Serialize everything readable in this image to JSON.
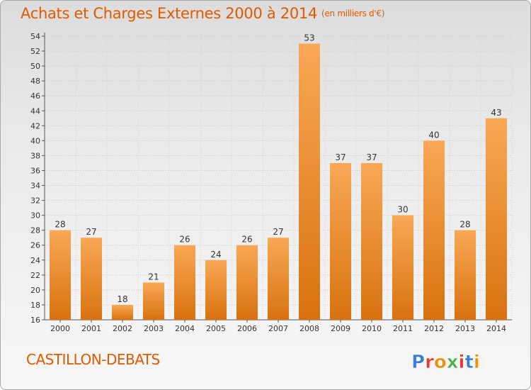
{
  "header": {
    "title": "Achats et Charges Externes 2000 à 2014",
    "unit": "(en milliers d'€)"
  },
  "footer": {
    "commune": "CASTILLON-DEBATS",
    "logo": "Proxiti",
    "logo_colors": [
      "#3b7fd4",
      "#e8392b",
      "#f28c00",
      "#4caf50",
      "#e8392b",
      "#3b7fd4",
      "#f28c00"
    ]
  },
  "colors": {
    "bar_light": "#f9a855",
    "bar_dark": "#d9720f",
    "accent": "#e05a00"
  },
  "chart_data": {
    "type": "bar",
    "title": "Achats et Charges Externes 2000 à 2014",
    "subtitle": "(en milliers d'€)",
    "categories": [
      "2000",
      "2001",
      "2002",
      "2003",
      "2004",
      "2005",
      "2006",
      "2007",
      "2008",
      "2009",
      "2010",
      "2011",
      "2012",
      "2013",
      "2014"
    ],
    "values": [
      28,
      27,
      18,
      21,
      26,
      24,
      26,
      27,
      53,
      37,
      37,
      30,
      40,
      28,
      43
    ],
    "ylim": [
      16,
      54
    ],
    "yticks": [
      16,
      18,
      20,
      22,
      24,
      26,
      28,
      30,
      32,
      34,
      36,
      38,
      40,
      42,
      44,
      46,
      48,
      50,
      52,
      54
    ],
    "grid": true,
    "xlabel": "",
    "ylabel": ""
  }
}
